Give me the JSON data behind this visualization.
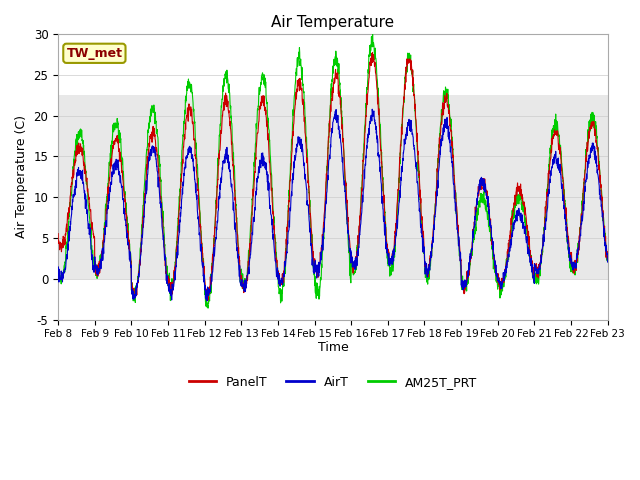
{
  "title": "Air Temperature",
  "ylabel": "Air Temperature (C)",
  "xlabel": "Time",
  "ylim": [
    -5,
    30
  ],
  "xlim": [
    0,
    15
  ],
  "xtick_labels": [
    "Feb 8",
    "Feb 9",
    "Feb 10",
    "Feb 11",
    "Feb 12",
    "Feb 13",
    "Feb 14",
    "Feb 15",
    "Feb 16",
    "Feb 17",
    "Feb 18",
    "Feb 19",
    "Feb 20",
    "Feb 21",
    "Feb 22",
    "Feb 23"
  ],
  "ytick_values": [
    -5,
    0,
    5,
    10,
    15,
    20,
    25,
    30
  ],
  "shaded_band": {
    "ymin": 0,
    "ymax": 22.5,
    "color": "#e8e8e8"
  },
  "legend_label": "TW_met",
  "legend_text_color": "#8b0000",
  "legend_bg_color": "#ffffcc",
  "legend_border_color": "#999900",
  "line_colors": {
    "PanelT": "#cc0000",
    "AirT": "#0000cc",
    "AM25T_PRT": "#00cc00"
  },
  "panel_peaks": [
    16,
    17,
    18,
    21,
    22,
    22,
    24,
    25,
    27,
    27,
    22,
    12,
    11,
    18,
    19
  ],
  "panel_mins": [
    4,
    1,
    -2,
    -1,
    -2,
    -1,
    -0.5,
    1,
    1.5,
    2,
    1,
    -1,
    -0.5,
    1,
    1.5
  ],
  "air_peaks": [
    13,
    14,
    16,
    16,
    15,
    15,
    17,
    20,
    20,
    19,
    19,
    12,
    8,
    15,
    16
  ],
  "air_mins": [
    0,
    1,
    -2,
    -1.5,
    -2,
    -1,
    -0.5,
    1,
    1.5,
    2,
    1,
    -1,
    -0.5,
    1,
    1.5
  ],
  "am25_peaks": [
    18,
    19,
    21,
    24,
    25,
    25,
    27,
    27,
    29,
    27,
    23,
    10,
    10,
    19,
    20
  ],
  "am25_mins": [
    0,
    1,
    -2,
    -1.5,
    -3,
    -1,
    -2,
    -2,
    1,
    1,
    0,
    -1,
    -1,
    0,
    1
  ]
}
